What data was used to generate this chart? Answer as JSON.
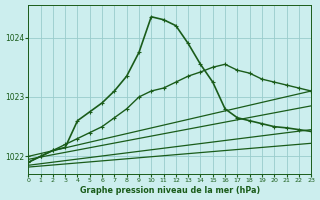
{
  "xlabel": "Graphe pression niveau de la mer (hPa)",
  "xlim": [
    0,
    23
  ],
  "ylim": [
    1021.7,
    1024.55
  ],
  "yticks": [
    1022,
    1023,
    1024
  ],
  "xticks": [
    0,
    1,
    2,
    3,
    4,
    5,
    6,
    7,
    8,
    9,
    10,
    11,
    12,
    13,
    14,
    15,
    16,
    17,
    18,
    19,
    20,
    21,
    22,
    23
  ],
  "bg_color": "#cceeee",
  "grid_color": "#99cccc",
  "line_color": "#1a5c1a",
  "curves": [
    {
      "x": [
        0,
        1,
        2,
        3,
        4,
        5,
        6,
        7,
        8,
        9,
        10,
        11,
        12,
        13,
        14,
        15,
        16,
        17,
        18,
        19,
        20,
        21,
        22,
        23
      ],
      "y": [
        1021.9,
        1022.0,
        1022.1,
        1022.15,
        1022.6,
        1022.75,
        1022.9,
        1023.1,
        1023.35,
        1023.75,
        1024.35,
        1024.3,
        1024.2,
        1023.9,
        1023.55,
        1023.25,
        1022.8,
        1022.65,
        1022.6,
        1022.55,
        1022.5,
        1022.48,
        1022.45,
        1022.42
      ],
      "marker": "+",
      "ms": 3,
      "lw": 1.2
    },
    {
      "x": [
        0,
        23
      ],
      "y": [
        1022.0,
        1023.1
      ],
      "marker": "+",
      "ms": 3,
      "lw": 0.9
    },
    {
      "x": [
        0,
        23
      ],
      "y": [
        1021.95,
        1022.85
      ],
      "marker": null,
      "ms": 0,
      "lw": 0.9
    },
    {
      "x": [
        0,
        23
      ],
      "y": [
        1021.85,
        1022.45
      ],
      "marker": null,
      "ms": 0,
      "lw": 0.9
    },
    {
      "x": [
        0,
        23
      ],
      "y": [
        1021.82,
        1022.22
      ],
      "marker": null,
      "ms": 0,
      "lw": 0.9
    },
    {
      "x": [
        0,
        1,
        2,
        3,
        4,
        5,
        6,
        7,
        8,
        9,
        10,
        11,
        12,
        13,
        14,
        15,
        16,
        17,
        18,
        19,
        20,
        21,
        22,
        23
      ],
      "y": [
        1021.9,
        1022.0,
        1022.1,
        1022.2,
        1022.3,
        1022.4,
        1022.5,
        1022.65,
        1022.8,
        1023.0,
        1023.1,
        1023.15,
        1023.25,
        1023.35,
        1023.42,
        1023.5,
        1023.55,
        1023.45,
        1023.4,
        1023.3,
        1023.25,
        1023.2,
        1023.15,
        1023.1
      ],
      "marker": "+",
      "ms": 3,
      "lw": 1.0
    }
  ]
}
